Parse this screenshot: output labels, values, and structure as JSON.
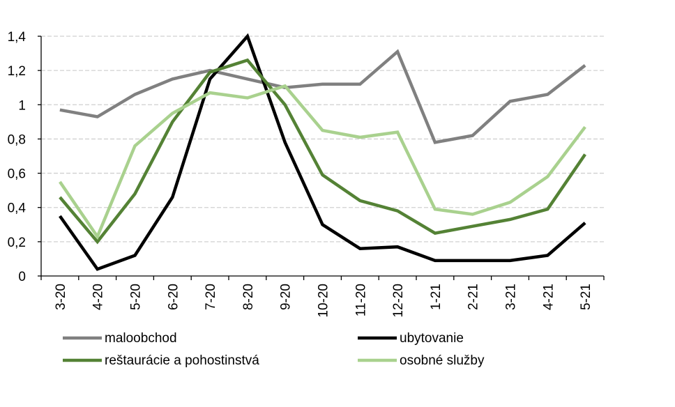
{
  "chart_data": {
    "type": "line",
    "title": "",
    "xlabel": "",
    "ylabel": "",
    "x": [
      "3-20",
      "4-20",
      "5-20",
      "6-20",
      "7-20",
      "8-20",
      "9-20",
      "10-20",
      "11-20",
      "12-20",
      "1-21",
      "2-21",
      "3-21",
      "4-21",
      "5-21"
    ],
    "ylim": [
      0,
      1.4
    ],
    "yticks": [
      "0",
      "0,2",
      "0,4",
      "0,6",
      "0,8",
      "1",
      "1,2",
      "1,4"
    ],
    "grid": true,
    "legend_position": "bottom",
    "series": [
      {
        "name": "maloobchod",
        "color": "#808080",
        "values": [
          0.97,
          0.93,
          1.06,
          1.15,
          1.2,
          1.15,
          1.1,
          1.12,
          1.12,
          1.31,
          0.78,
          0.82,
          1.02,
          1.06,
          1.23
        ]
      },
      {
        "name": "ubytovanie",
        "color": "#000000",
        "values": [
          0.35,
          0.04,
          0.12,
          0.46,
          1.15,
          1.4,
          0.78,
          0.3,
          0.16,
          0.17,
          0.09,
          0.09,
          0.09,
          0.12,
          0.31
        ]
      },
      {
        "name": "reštaurácie a pohostinstvá",
        "color": "#548235",
        "values": [
          0.46,
          0.2,
          0.48,
          0.9,
          1.19,
          1.26,
          1.0,
          0.59,
          0.44,
          0.38,
          0.25,
          0.29,
          0.33,
          0.39,
          0.71
        ]
      },
      {
        "name": "osobné služby",
        "color": "#A9D18E",
        "values": [
          0.55,
          0.23,
          0.76,
          0.95,
          1.07,
          1.04,
          1.11,
          0.85,
          0.81,
          0.84,
          0.39,
          0.36,
          0.43,
          0.58,
          0.87
        ]
      }
    ]
  }
}
